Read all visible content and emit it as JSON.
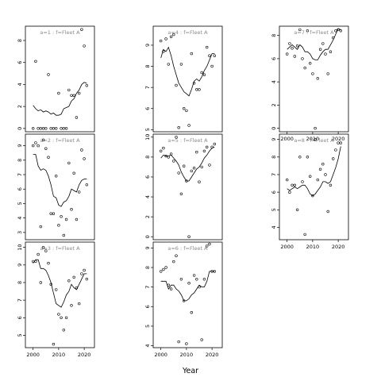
{
  "figure": {
    "xlabel": "Year"
  },
  "chart_data": [
    {
      "type": "scatter",
      "title": "a=1 : f=Fleet A",
      "ylim": [
        -0.3,
        9.3
      ],
      "yticks": [
        0,
        2,
        4,
        6,
        8
      ],
      "xlim": [
        1997,
        2024
      ],
      "xticks": [],
      "points": {
        "x": [
          2000,
          2001,
          2002,
          2003,
          2004,
          2005,
          2006,
          2007,
          2008,
          2009,
          2010,
          2011,
          2012,
          2013,
          2014,
          2015,
          2016,
          2017,
          2018,
          2019,
          2020,
          2021
        ],
        "y": [
          0,
          6.1,
          0,
          0,
          0,
          0,
          4.9,
          0,
          0,
          0,
          3.2,
          0,
          0,
          0,
          3.5,
          3.0,
          3.0,
          1.0,
          3.2,
          9.0,
          7.5,
          3.9
        ]
      },
      "line": {
        "x": [
          2000,
          2001,
          2002,
          2003,
          2004,
          2005,
          2006,
          2007,
          2008,
          2009,
          2010,
          2011,
          2012,
          2013,
          2014,
          2015,
          2016,
          2017,
          2018,
          2019,
          2020,
          2021
        ],
        "y": [
          2.1,
          1.8,
          1.6,
          1.7,
          1.5,
          1.6,
          1.5,
          1.3,
          1.4,
          1.2,
          1.2,
          1.3,
          1.8,
          1.9,
          2.0,
          2.5,
          2.7,
          3.2,
          3.5,
          4.0,
          4.2,
          4.1
        ]
      }
    },
    {
      "type": "scatter",
      "title": "a=4 : f=Fleet A",
      "ylim": [
        4.9,
        9.9
      ],
      "yticks": [
        5,
        6,
        7,
        8,
        9
      ],
      "xlim": [
        1997,
        2024
      ],
      "xticks": [],
      "points": {
        "x": [
          2000,
          2001,
          2002,
          2003,
          2004,
          2005,
          2006,
          2007,
          2008,
          2009,
          2010,
          2011,
          2012,
          2013,
          2014,
          2015,
          2016,
          2017,
          2018,
          2019,
          2020,
          2021
        ],
        "y": [
          9.2,
          8.7,
          9.3,
          8.1,
          9.4,
          9.5,
          7.1,
          5.1,
          8.1,
          6.0,
          5.9,
          5.2,
          8.6,
          7.2,
          6.9,
          6.9,
          7.7,
          7.6,
          8.9,
          8.5,
          8.0,
          8.5
        ]
      },
      "line": {
        "x": [
          2000,
          2001,
          2002,
          2003,
          2004,
          2005,
          2006,
          2007,
          2008,
          2009,
          2010,
          2011,
          2012,
          2013,
          2014,
          2015,
          2016,
          2017,
          2018,
          2019,
          2020,
          2021
        ],
        "y": [
          8.4,
          8.8,
          8.7,
          8.9,
          8.5,
          8.0,
          7.6,
          7.2,
          7.0,
          6.8,
          6.7,
          6.6,
          6.9,
          7.3,
          7.4,
          7.3,
          7.5,
          7.8,
          8.0,
          8.3,
          8.6,
          8.6
        ]
      }
    },
    {
      "type": "scatter",
      "title": "a=7 : f=Fleet A",
      "ylim": [
        -0.3,
        8.8
      ],
      "yticks": [
        0,
        2,
        4,
        6,
        8
      ],
      "xlim": [
        1997,
        2024
      ],
      "xticks": [
        2000,
        2010,
        2020
      ],
      "points": {
        "x": [
          2000,
          2001,
          2002,
          2003,
          2004,
          2005,
          2006,
          2007,
          2008,
          2009,
          2010,
          2011,
          2012,
          2013,
          2014,
          2015,
          2016,
          2017,
          2018,
          2019,
          2020,
          2021
        ],
        "y": [
          6.4,
          7.3,
          6.9,
          6.2,
          7.1,
          8.5,
          6.0,
          5.2,
          8.4,
          5.6,
          4.7,
          0,
          4.3,
          6.8,
          7.3,
          6.4,
          4.7,
          6.6,
          7.8,
          8.4,
          8.5,
          8.4
        ]
      },
      "line": {
        "x": [
          2000,
          2001,
          2002,
          2003,
          2004,
          2005,
          2006,
          2007,
          2008,
          2009,
          2010,
          2011,
          2012,
          2013,
          2014,
          2015,
          2016,
          2017,
          2018,
          2019,
          2020,
          2021
        ],
        "y": [
          6.8,
          7.0,
          7.2,
          7.0,
          6.8,
          7.2,
          7.0,
          6.6,
          6.6,
          6.4,
          6.0,
          5.9,
          5.9,
          6.3,
          6.6,
          6.8,
          6.8,
          7.2,
          7.6,
          8.1,
          8.6,
          8.5
        ]
      }
    },
    {
      "type": "scatter",
      "title": "a=2 : f=Fleet A",
      "ylim": [
        2.5,
        9.8
      ],
      "yticks": [
        3,
        4,
        5,
        6,
        7,
        8,
        9
      ],
      "xlim": [
        1997,
        2024
      ],
      "xticks": [],
      "points": {
        "x": [
          2000,
          2001,
          2002,
          2003,
          2004,
          2005,
          2006,
          2007,
          2008,
          2009,
          2010,
          2011,
          2012,
          2013,
          2014,
          2015,
          2016,
          2017,
          2018,
          2019,
          2020,
          2021
        ],
        "y": [
          9.0,
          9.2,
          9.0,
          3.4,
          9.4,
          8.8,
          8.2,
          4.3,
          4.3,
          6.9,
          3.5,
          4.1,
          2.8,
          3.9,
          7.8,
          4.6,
          7.1,
          3.9,
          5.8,
          8.7,
          8.1,
          6.3
        ]
      },
      "line": {
        "x": [
          2000,
          2001,
          2002,
          2003,
          2004,
          2005,
          2006,
          2007,
          2008,
          2009,
          2010,
          2011,
          2012,
          2013,
          2014,
          2015,
          2016,
          2017,
          2018,
          2019,
          2020,
          2021
        ],
        "y": [
          8.4,
          8.4,
          7.6,
          7.3,
          7.4,
          7.3,
          6.9,
          6.3,
          5.5,
          5.4,
          4.9,
          4.8,
          5.1,
          5.2,
          5.5,
          6.0,
          5.9,
          5.8,
          6.3,
          6.6,
          6.7,
          6.7
        ]
      }
    },
    {
      "type": "scatter",
      "title": "a=5 : f=Fleet A",
      "ylim": [
        -0.3,
        10.3
      ],
      "yticks": [
        0,
        2,
        4,
        6,
        8,
        10
      ],
      "xlim": [
        1997,
        2024
      ],
      "xticks": [],
      "points": {
        "x": [
          2000,
          2001,
          2002,
          2003,
          2004,
          2005,
          2006,
          2007,
          2008,
          2009,
          2010,
          2011,
          2012,
          2013,
          2014,
          2015,
          2016,
          2017,
          2018,
          2019,
          2020,
          2021
        ],
        "y": [
          8.6,
          8.9,
          8.1,
          8.0,
          8.3,
          7.6,
          10.0,
          6.4,
          4.3,
          7.1,
          5.6,
          0,
          6.6,
          6.9,
          8.5,
          5.5,
          7.0,
          8.6,
          9.0,
          7.2,
          9.0,
          9.3
        ]
      },
      "line": {
        "x": [
          2000,
          2001,
          2002,
          2003,
          2004,
          2005,
          2006,
          2007,
          2008,
          2009,
          2010,
          2011,
          2012,
          2013,
          2014,
          2015,
          2016,
          2017,
          2018,
          2019,
          2020,
          2021
        ],
        "y": [
          7.9,
          8.2,
          8.1,
          8.1,
          8.2,
          7.9,
          7.6,
          7.2,
          6.5,
          6.0,
          5.6,
          5.6,
          6.0,
          6.4,
          6.8,
          7.0,
          7.4,
          7.9,
          8.2,
          8.6,
          8.9,
          9.0
        ]
      }
    },
    {
      "type": "scatter",
      "title": "a=8 : f=Fleet A",
      "ylim": [
        3.3,
        9.3
      ],
      "yticks": [
        4,
        5,
        6,
        7,
        8,
        9
      ],
      "xlim": [
        1997,
        2024
      ],
      "xticks": [
        2000,
        2010,
        2020
      ],
      "points": {
        "x": [
          2000,
          2001,
          2002,
          2003,
          2004,
          2005,
          2006,
          2007,
          2008,
          2009,
          2010,
          2011,
          2012,
          2013,
          2014,
          2015,
          2016,
          2017,
          2018,
          2019,
          2020,
          2021
        ],
        "y": [
          6.7,
          6.0,
          6.4,
          6.4,
          5.0,
          8.0,
          6.6,
          3.6,
          8.0,
          6.9,
          5.8,
          9.0,
          6.7,
          7.3,
          7.6,
          7.0,
          4.9,
          6.4,
          7.9,
          8.4,
          8.8,
          8.8
        ]
      },
      "line": {
        "x": [
          2000,
          2001,
          2002,
          2003,
          2004,
          2005,
          2006,
          2007,
          2008,
          2009,
          2010,
          2011,
          2012,
          2013,
          2014,
          2015,
          2016,
          2017,
          2018,
          2019,
          2020,
          2021
        ],
        "y": [
          6.2,
          6.1,
          6.2,
          6.3,
          6.2,
          6.3,
          6.4,
          6.4,
          6.2,
          5.9,
          5.8,
          5.9,
          6.1,
          6.3,
          6.6,
          6.6,
          6.5,
          6.6,
          7.0,
          7.4,
          7.9,
          8.6
        ]
      }
    },
    {
      "type": "scatter",
      "title": "a=3 : f=Fleet A",
      "ylim": [
        4.3,
        10.3
      ],
      "yticks": [
        5,
        6,
        7,
        8,
        9,
        10
      ],
      "xlim": [
        1997,
        2024
      ],
      "xticks": [
        2000,
        2010,
        2020
      ],
      "points": {
        "x": [
          2000,
          2001,
          2002,
          2003,
          2004,
          2005,
          2006,
          2007,
          2008,
          2009,
          2010,
          2011,
          2012,
          2013,
          2014,
          2015,
          2016,
          2017,
          2018,
          2019,
          2020,
          2021
        ],
        "y": [
          9.2,
          9.2,
          9.6,
          8.0,
          10.0,
          9.8,
          9.1,
          7.9,
          4.5,
          7.6,
          6.2,
          6.0,
          5.3,
          6.0,
          8.1,
          6.7,
          8.3,
          7.7,
          6.8,
          8.5,
          8.7,
          8.2
        ]
      },
      "line": {
        "x": [
          2000,
          2001,
          2002,
          2003,
          2004,
          2005,
          2006,
          2007,
          2008,
          2009,
          2010,
          2011,
          2012,
          2013,
          2014,
          2015,
          2016,
          2017,
          2018,
          2019,
          2020,
          2021
        ],
        "y": [
          9.1,
          9.3,
          9.3,
          8.8,
          8.8,
          8.7,
          8.4,
          8.0,
          7.4,
          6.8,
          6.7,
          6.6,
          6.9,
          7.3,
          7.5,
          7.9,
          7.7,
          7.6,
          7.9,
          8.2,
          8.5,
          8.5
        ]
      }
    },
    {
      "type": "scatter",
      "title": "a=6 : f=Fleet A",
      "ylim": [
        3.9,
        9.3
      ],
      "yticks": [
        4,
        5,
        6,
        7,
        8,
        9
      ],
      "xlim": [
        1997,
        2024
      ],
      "xticks": [
        2000,
        2010,
        2020
      ],
      "points": {
        "x": [
          2000,
          2001,
          2002,
          2003,
          2004,
          2005,
          2006,
          2007,
          2008,
          2009,
          2010,
          2011,
          2012,
          2013,
          2014,
          2015,
          2016,
          2017,
          2018,
          2019,
          2020,
          2021
        ],
        "y": [
          7.8,
          7.9,
          8.0,
          7.1,
          6.9,
          8.3,
          8.6,
          4.2,
          7.4,
          6.3,
          4.1,
          7.2,
          5.7,
          7.6,
          7.4,
          7.0,
          4.3,
          7.4,
          9.1,
          9.2,
          7.8,
          7.8
        ]
      },
      "line": {
        "x": [
          2000,
          2001,
          2002,
          2003,
          2004,
          2005,
          2006,
          2007,
          2008,
          2009,
          2010,
          2011,
          2012,
          2013,
          2014,
          2015,
          2016,
          2017,
          2018,
          2019,
          2020,
          2021
        ],
        "y": [
          7.3,
          7.3,
          7.3,
          6.9,
          7.1,
          7.1,
          6.9,
          6.8,
          6.6,
          6.3,
          6.3,
          6.4,
          6.6,
          6.7,
          6.9,
          7.1,
          7.0,
          7.0,
          7.3,
          7.8,
          7.8,
          7.8
        ]
      }
    }
  ]
}
